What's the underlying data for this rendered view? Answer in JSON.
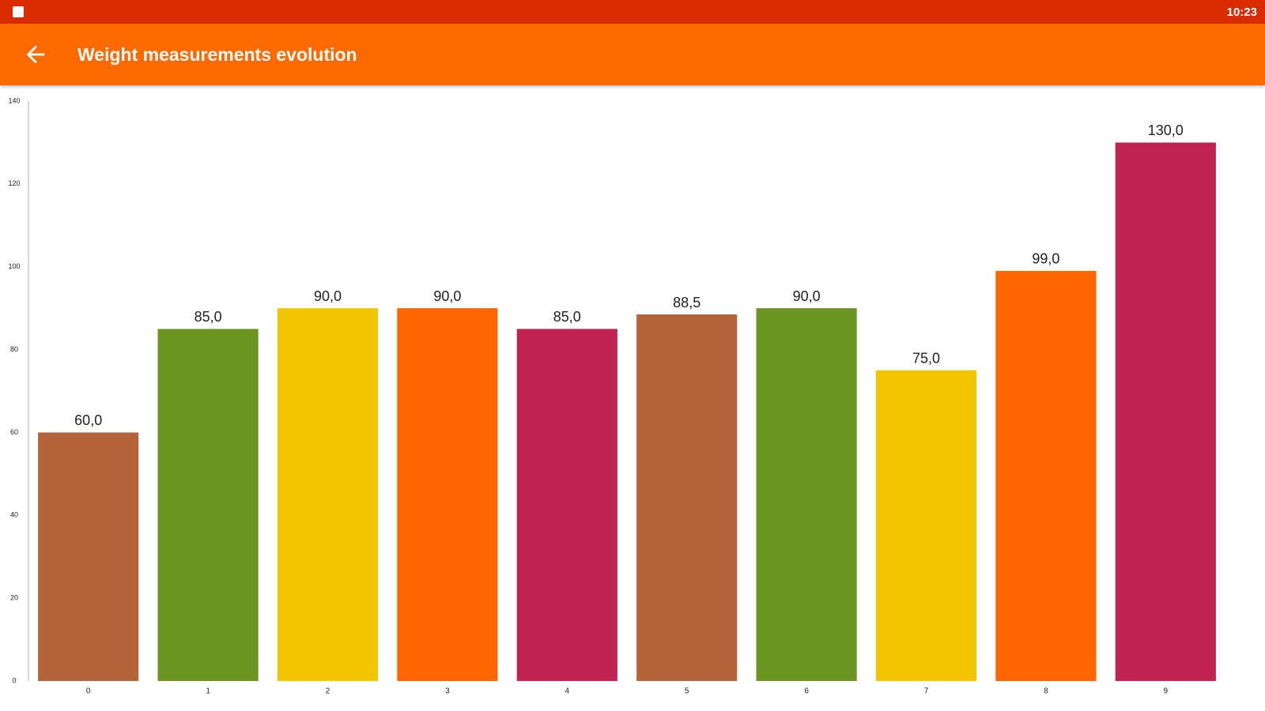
{
  "status_bar": {
    "time": "10:23"
  },
  "app_bar": {
    "title": "Weight measurements evolution"
  },
  "chart_data": {
    "type": "bar",
    "categories": [
      "0",
      "1",
      "2",
      "3",
      "4",
      "5",
      "6",
      "7",
      "8",
      "9"
    ],
    "values": [
      60,
      85,
      90,
      90,
      85,
      88.5,
      90,
      75,
      99,
      130
    ],
    "value_labels": [
      "60,0",
      "85,0",
      "90,0",
      "90,0",
      "85,0",
      "88,5",
      "90,0",
      "75,0",
      "99,0",
      "130,0"
    ],
    "colors": [
      "#b5643a",
      "#6a9520",
      "#f2c500",
      "#ff6600",
      "#c0234f",
      "#b5643a",
      "#6a9520",
      "#f2c500",
      "#ff6600",
      "#c0234f"
    ],
    "ylim": [
      0,
      140
    ],
    "yticks": [
      0,
      20,
      40,
      60,
      80,
      100,
      120,
      140
    ],
    "grid": false
  }
}
